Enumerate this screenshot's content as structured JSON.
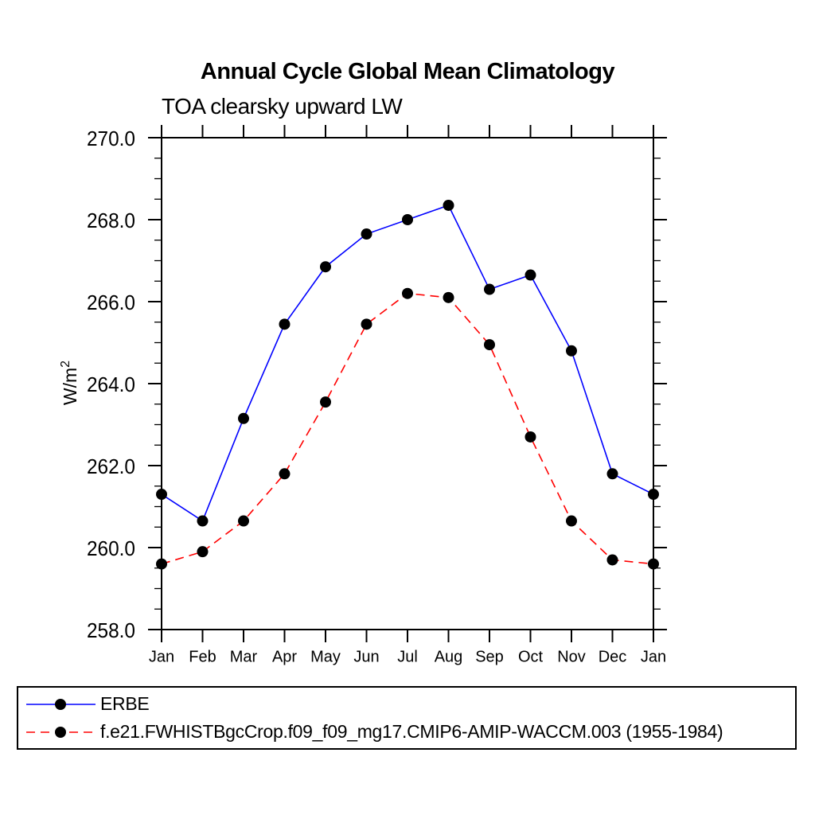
{
  "chart_data": {
    "type": "line",
    "title": "Annual Cycle Global Mean Climatology",
    "subtitle": "TOA clearsky upward LW",
    "ylabel": "W/m²",
    "ylabel_base": "W/m",
    "ylabel_sup": "2",
    "x": [
      "Jan",
      "Feb",
      "Mar",
      "Apr",
      "May",
      "Jun",
      "Jul",
      "Aug",
      "Sep",
      "Oct",
      "Nov",
      "Dec",
      "Jan"
    ],
    "ylim": [
      258.0,
      270.0
    ],
    "ytick_major_step": 2.0,
    "ytick_minor_step": 0.5,
    "ytick_labels": [
      "270.0",
      "268.0",
      "266.0",
      "264.0",
      "262.0",
      "260.0",
      "258.0"
    ],
    "grid": false,
    "legend_position": "bottom-left-box",
    "series": [
      {
        "name": "ERBE",
        "color": "#0000ff",
        "line_style": "solid",
        "marker": "filled-circle",
        "marker_color": "#000000",
        "values": [
          261.3,
          260.65,
          263.15,
          265.45,
          266.85,
          267.65,
          268.0,
          268.35,
          266.3,
          266.65,
          264.8,
          261.8,
          261.3
        ]
      },
      {
        "name": "f.e21.FWHISTBgcCrop.f09_f09_mg17.CMIP6-AMIP-WACCM.003 (1955-1984)",
        "color": "#ff0000",
        "line_style": "dashed",
        "marker": "filled-circle",
        "marker_color": "#000000",
        "values": [
          259.6,
          259.9,
          260.65,
          261.8,
          263.55,
          265.45,
          266.2,
          266.1,
          264.95,
          262.7,
          260.65,
          259.7,
          259.6
        ]
      }
    ]
  }
}
